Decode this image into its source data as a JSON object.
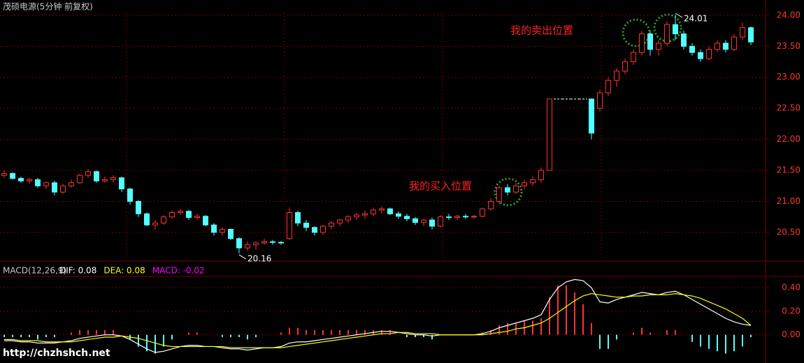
{
  "chart_data": [
    {
      "type": "candlestick",
      "title": "茂硕电源(5分钟 前复权)",
      "ylim": [
        20.06,
        24.19
      ],
      "yticks": [
        {
          "value": 20.5,
          "label": "20.50"
        },
        {
          "value": 21,
          "label": "21.00"
        },
        {
          "value": 21.5,
          "label": "21.50"
        },
        {
          "value": 22,
          "label": "22.00"
        },
        {
          "value": 22.5,
          "label": "22.50"
        },
        {
          "value": 23,
          "label": "23.00"
        },
        {
          "value": 23.5,
          "label": "23.50"
        },
        {
          "value": 24,
          "label": "24.00"
        }
      ],
      "up_color": "#ff3232",
      "down_color": "#54ffff",
      "grid": true,
      "low_label": 20.16,
      "high_label": 24.01,
      "buy_annotation": "我的买入位置",
      "sell_annotation": "我的卖出位置",
      "candles": [
        [
          21.42,
          21.5,
          21.38,
          21.45
        ],
        [
          21.45,
          21.47,
          21.35,
          21.37
        ],
        [
          21.37,
          21.4,
          21.3,
          21.33
        ],
        [
          21.33,
          21.38,
          21.28,
          21.35
        ],
        [
          21.35,
          21.38,
          21.22,
          21.25
        ],
        [
          21.25,
          21.32,
          21.2,
          21.3
        ],
        [
          21.3,
          21.33,
          21.1,
          21.15
        ],
        [
          21.15,
          21.28,
          21.12,
          21.25
        ],
        [
          21.25,
          21.35,
          21.22,
          21.3
        ],
        [
          21.3,
          21.45,
          21.28,
          21.42
        ],
        [
          21.42,
          21.52,
          21.38,
          21.48
        ],
        [
          21.48,
          21.5,
          21.3,
          21.33
        ],
        [
          21.33,
          21.4,
          21.3,
          21.35
        ],
        [
          21.35,
          21.42,
          21.3,
          21.38
        ],
        [
          21.38,
          21.4,
          21.15,
          21.2
        ],
        [
          21.2,
          21.22,
          20.95,
          21.0
        ],
        [
          21.0,
          21.02,
          20.75,
          20.8
        ],
        [
          20.8,
          20.82,
          20.6,
          20.62
        ],
        [
          20.62,
          20.7,
          20.55,
          20.65
        ],
        [
          20.65,
          20.78,
          20.62,
          20.75
        ],
        [
          20.75,
          20.85,
          20.72,
          20.82
        ],
        [
          20.82,
          20.88,
          20.78,
          20.84
        ],
        [
          20.84,
          20.86,
          20.7,
          20.74
        ],
        [
          20.74,
          20.8,
          20.7,
          20.76
        ],
        [
          20.76,
          20.78,
          20.6,
          20.62
        ],
        [
          20.62,
          20.65,
          20.45,
          20.5
        ],
        [
          20.5,
          20.58,
          20.45,
          20.55
        ],
        [
          20.55,
          20.56,
          20.38,
          20.4
        ],
        [
          20.4,
          20.42,
          20.16,
          20.25
        ],
        [
          20.25,
          20.35,
          20.2,
          20.3
        ],
        [
          20.3,
          20.36,
          20.22,
          20.33
        ],
        [
          20.33,
          20.4,
          20.3,
          20.35
        ],
        [
          20.35,
          20.38,
          20.3,
          20.34
        ],
        [
          20.34,
          20.36,
          20.3,
          20.33
        ],
        [
          20.4,
          20.9,
          20.38,
          20.82
        ],
        [
          20.82,
          20.85,
          20.6,
          20.65
        ],
        [
          20.65,
          20.7,
          20.52,
          20.58
        ],
        [
          20.58,
          20.6,
          20.45,
          20.5
        ],
        [
          20.5,
          20.62,
          20.46,
          20.6
        ],
        [
          20.6,
          20.68,
          20.55,
          20.65
        ],
        [
          20.65,
          20.72,
          20.6,
          20.7
        ],
        [
          20.7,
          20.78,
          20.65,
          20.75
        ],
        [
          20.75,
          20.82,
          20.7,
          20.78
        ],
        [
          20.78,
          20.85,
          20.72,
          20.8
        ],
        [
          20.8,
          20.9,
          20.76,
          20.86
        ],
        [
          20.86,
          20.92,
          20.8,
          20.88
        ],
        [
          20.88,
          20.9,
          20.78,
          20.8
        ],
        [
          20.8,
          20.84,
          20.72,
          20.76
        ],
        [
          20.76,
          20.8,
          20.68,
          20.72
        ],
        [
          20.72,
          20.75,
          20.62,
          20.66
        ],
        [
          20.66,
          20.72,
          20.6,
          20.7
        ],
        [
          20.7,
          20.74,
          20.55,
          20.6
        ],
        [
          20.6,
          20.78,
          20.58,
          20.75
        ],
        [
          20.75,
          20.8,
          20.7,
          20.74
        ],
        [
          20.74,
          20.78,
          20.7,
          20.76
        ],
        [
          20.76,
          20.8,
          20.72,
          20.75
        ],
        [
          20.75,
          20.78,
          20.72,
          20.76
        ],
        [
          20.76,
          20.9,
          20.74,
          20.88
        ],
        [
          20.88,
          21.05,
          20.85,
          21.0
        ],
        [
          21.0,
          21.25,
          20.95,
          21.22
        ],
        [
          21.22,
          21.28,
          21.1,
          21.15
        ],
        [
          21.15,
          21.3,
          21.12,
          21.25
        ],
        [
          21.25,
          21.35,
          21.2,
          21.3
        ],
        [
          21.3,
          21.4,
          21.25,
          21.35
        ],
        [
          21.35,
          21.55,
          21.3,
          21.5
        ],
        [
          21.5,
          22.65,
          21.5,
          22.65
        ],
        [
          22.65,
          22.65,
          22.65,
          22.65
        ],
        [
          22.65,
          22.65,
          22.65,
          22.65
        ],
        [
          22.65,
          22.65,
          22.65,
          22.65
        ],
        [
          22.65,
          22.65,
          22.65,
          22.65
        ],
        [
          22.65,
          22.66,
          22.0,
          22.1
        ],
        [
          22.5,
          22.8,
          22.45,
          22.75
        ],
        [
          22.75,
          23.0,
          22.7,
          22.95
        ],
        [
          22.95,
          23.15,
          22.85,
          23.1
        ],
        [
          23.1,
          23.3,
          23.05,
          23.25
        ],
        [
          23.25,
          23.45,
          23.2,
          23.4
        ],
        [
          23.4,
          23.75,
          23.35,
          23.7
        ],
        [
          23.7,
          23.75,
          23.35,
          23.45
        ],
        [
          23.45,
          23.6,
          23.35,
          23.55
        ],
        [
          23.55,
          23.9,
          23.5,
          23.85
        ],
        [
          23.85,
          24.01,
          23.6,
          23.7
        ],
        [
          23.7,
          23.75,
          23.45,
          23.5
        ],
        [
          23.5,
          23.55,
          23.35,
          23.4
        ],
        [
          23.4,
          23.45,
          23.25,
          23.3
        ],
        [
          23.3,
          23.5,
          23.28,
          23.45
        ],
        [
          23.45,
          23.6,
          23.4,
          23.55
        ],
        [
          23.55,
          23.6,
          23.4,
          23.45
        ],
        [
          23.45,
          23.7,
          23.42,
          23.65
        ],
        [
          23.65,
          23.88,
          23.6,
          23.8
        ],
        [
          23.8,
          23.82,
          23.52,
          23.57
        ]
      ]
    },
    {
      "type": "macd",
      "title": "MACD(12,26,9)",
      "ylim": [
        -0.21,
        0.49
      ],
      "yticks": [
        {
          "value": 0,
          "label": "0.00"
        },
        {
          "value": 0.2,
          "label": "0.20"
        },
        {
          "value": 0.4,
          "label": "0.40"
        }
      ],
      "series": [
        {
          "name": "DIF: 0.08",
          "color": "#ffffff",
          "values": [
            -0.05,
            -0.05,
            -0.06,
            -0.06,
            -0.07,
            -0.07,
            -0.07,
            -0.06,
            -0.05,
            -0.03,
            -0.02,
            -0.01,
            0,
            0,
            -0.01,
            -0.04,
            -0.08,
            -0.12,
            -0.15,
            -0.14,
            -0.12,
            -0.1,
            -0.09,
            -0.09,
            -0.1,
            -0.1,
            -0.11,
            -0.12,
            -0.12,
            -0.13,
            -0.12,
            -0.11,
            -0.11,
            -0.1,
            -0.07,
            -0.06,
            -0.06,
            -0.05,
            -0.04,
            -0.03,
            -0.02,
            -0.01,
            0,
            0.01,
            0.02,
            0.03,
            0.03,
            0.02,
            0.01,
            0,
            0,
            -0.01,
            0,
            0,
            0,
            0,
            0,
            0.01,
            0.03,
            0.06,
            0.08,
            0.1,
            0.12,
            0.14,
            0.17,
            0.3,
            0.4,
            0.45,
            0.47,
            0.46,
            0.4,
            0.28,
            0.27,
            0.3,
            0.32,
            0.34,
            0.36,
            0.35,
            0.34,
            0.36,
            0.37,
            0.34,
            0.3,
            0.26,
            0.22,
            0.18,
            0.14,
            0.11,
            0.09,
            0.08
          ]
        },
        {
          "name": "DEA: 0.08",
          "color": "#ffff00",
          "values": [
            -0.04,
            -0.04,
            -0.05,
            -0.05,
            -0.05,
            -0.06,
            -0.06,
            -0.06,
            -0.06,
            -0.05,
            -0.04,
            -0.03,
            -0.02,
            -0.02,
            -0.01,
            -0.02,
            -0.03,
            -0.05,
            -0.07,
            -0.09,
            -0.1,
            -0.1,
            -0.1,
            -0.1,
            -0.1,
            -0.1,
            -0.1,
            -0.11,
            -0.11,
            -0.11,
            -0.11,
            -0.11,
            -0.11,
            -0.11,
            -0.1,
            -0.09,
            -0.08,
            -0.07,
            -0.06,
            -0.05,
            -0.04,
            -0.03,
            -0.02,
            -0.01,
            0,
            0.01,
            0.01,
            0.02,
            0.02,
            0.01,
            0.01,
            0.01,
            0,
            0,
            0,
            0,
            0,
            0,
            0.01,
            0.02,
            0.03,
            0.05,
            0.06,
            0.08,
            0.1,
            0.14,
            0.19,
            0.24,
            0.29,
            0.33,
            0.35,
            0.34,
            0.33,
            0.32,
            0.32,
            0.33,
            0.33,
            0.34,
            0.34,
            0.34,
            0.35,
            0.34,
            0.33,
            0.31,
            0.28,
            0.25,
            0.22,
            0.18,
            0.14,
            0.08
          ]
        },
        {
          "name": "MACD: -0.02",
          "color": "#ff00ff",
          "up_color": "#ff3232",
          "down_color": "#54ffff",
          "values": [
            -0.02,
            -0.02,
            -0.02,
            -0.02,
            -0.04,
            -0.02,
            -0.02,
            0,
            0.02,
            0.04,
            0.04,
            0.04,
            0.04,
            0.04,
            0,
            -0.04,
            -0.1,
            -0.14,
            -0.16,
            -0.1,
            -0.04,
            0,
            0.02,
            0.02,
            0,
            0,
            -0.02,
            -0.02,
            -0.02,
            -0.04,
            -0.02,
            0,
            0,
            0.02,
            0.06,
            0.06,
            0.04,
            0.04,
            0.04,
            0.04,
            0.04,
            0.04,
            0.04,
            0.04,
            0.04,
            0.04,
            0.04,
            0,
            -0.02,
            -0.02,
            -0.02,
            -0.04,
            0,
            0,
            0,
            0,
            0,
            0.02,
            0.04,
            0.08,
            0.1,
            0.1,
            0.12,
            0.12,
            0.14,
            0.32,
            0.42,
            0.42,
            0.36,
            0.26,
            0.1,
            -0.12,
            -0.12,
            -0.04,
            0,
            0.02,
            0.06,
            0.02,
            0,
            0.04,
            0.04,
            0,
            -0.06,
            -0.1,
            -0.12,
            -0.14,
            -0.16,
            -0.14,
            -0.1,
            -0.02
          ]
        }
      ]
    }
  ],
  "watermark": "http://chzhshch.net"
}
